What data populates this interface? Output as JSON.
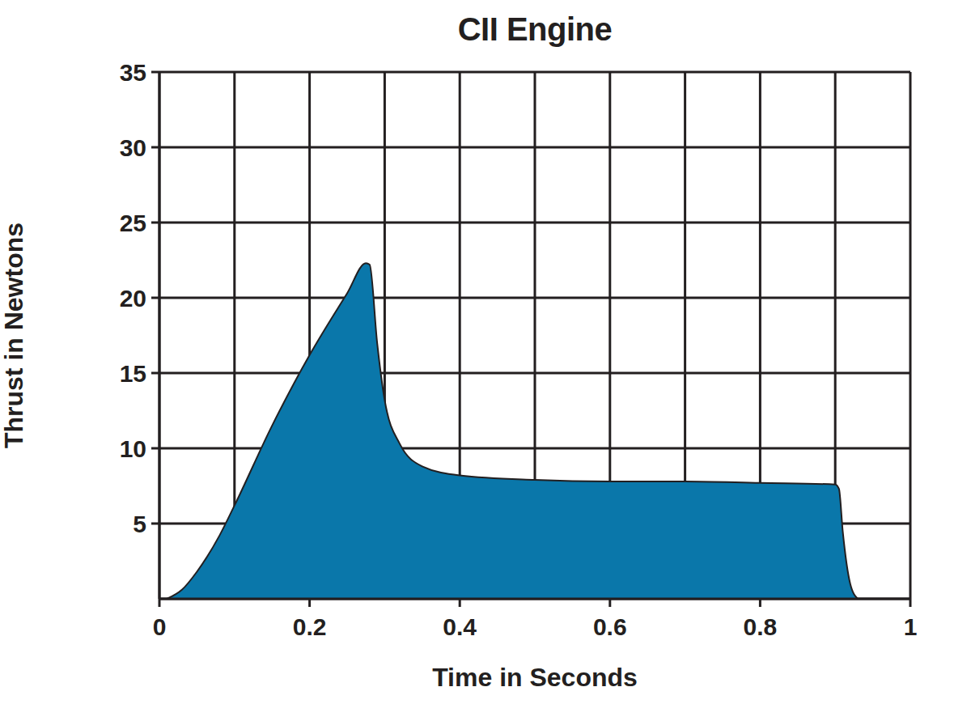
{
  "chart_data": {
    "type": "area",
    "title": "CII Engine",
    "x_label": "Time in Seconds",
    "y_label": "Thrust in Newtons",
    "x": [
      0.01,
      0.03,
      0.05,
      0.08,
      0.1,
      0.15,
      0.2,
      0.25,
      0.275,
      0.28,
      0.29,
      0.3,
      0.32,
      0.35,
      0.4,
      0.5,
      0.6,
      0.7,
      0.8,
      0.9,
      0.905,
      0.91,
      0.92,
      0.93
    ],
    "values": [
      0,
      0.6,
      1.8,
      4.2,
      6.2,
      11.5,
      16.2,
      20.3,
      22.3,
      22.2,
      17,
      13.2,
      10.3,
      8.8,
      8.2,
      7.9,
      7.8,
      7.8,
      7.7,
      7.6,
      7.3,
      4.5,
      1.0,
      0
    ],
    "color": "#0a77aa",
    "xlim": [
      0,
      1
    ],
    "xticks": [
      0,
      0.2,
      0.4,
      0.6,
      0.8,
      1
    ],
    "ylim": [
      0,
      35
    ],
    "yticks": [
      5,
      10,
      15,
      20,
      25,
      30,
      35
    ],
    "grid": true
  }
}
